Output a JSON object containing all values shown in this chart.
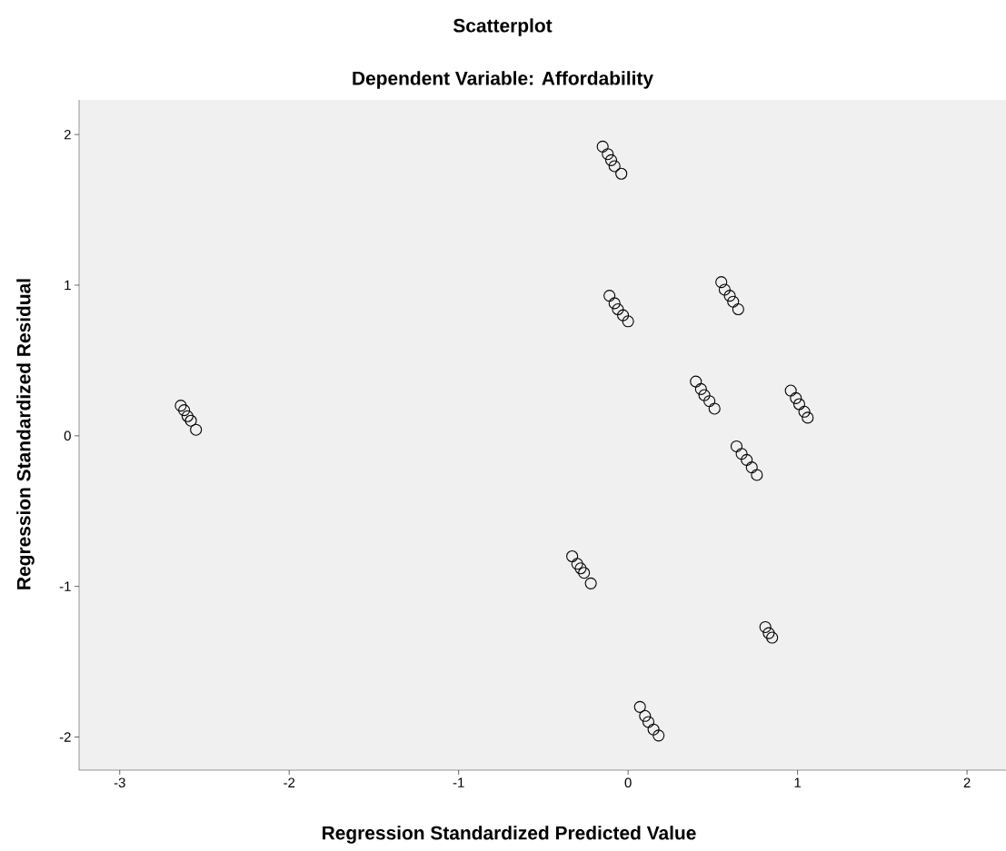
{
  "chart_data": {
    "type": "scatter",
    "title": "Scatterplot",
    "subtitle": "Dependent Variable: Affordability",
    "xlabel": "Regression Standardized Predicted Value",
    "ylabel": "Regression Standardized Residual",
    "x": [
      -2.64,
      -2.62,
      -2.6,
      -2.58,
      -2.55,
      -0.15,
      -0.12,
      -0.1,
      -0.08,
      -0.04,
      -0.11,
      -0.08,
      -0.06,
      -0.03,
      0.0,
      0.55,
      0.57,
      0.6,
      0.62,
      0.65,
      0.4,
      0.43,
      0.45,
      0.48,
      0.51,
      0.96,
      0.99,
      1.01,
      1.04,
      1.06,
      0.64,
      0.67,
      0.7,
      0.73,
      0.76,
      -0.33,
      -0.3,
      -0.28,
      -0.26,
      -0.22,
      0.81,
      0.83,
      0.85,
      0.07,
      0.1,
      0.12,
      0.15,
      0.18
    ],
    "values": [
      0.2,
      0.17,
      0.13,
      0.1,
      0.04,
      1.92,
      1.87,
      1.83,
      1.79,
      1.74,
      0.93,
      0.88,
      0.84,
      0.8,
      0.76,
      1.02,
      0.97,
      0.93,
      0.89,
      0.84,
      0.36,
      0.31,
      0.27,
      0.23,
      0.18,
      0.3,
      0.25,
      0.21,
      0.16,
      0.12,
      -0.07,
      -0.12,
      -0.16,
      -0.21,
      -0.26,
      -0.8,
      -0.85,
      -0.88,
      -0.91,
      -0.98,
      -1.27,
      -1.31,
      -1.34,
      -1.8,
      -1.86,
      -1.9,
      -1.95,
      -1.99
    ],
    "color": "#000000",
    "marker": "circle",
    "xlim": [
      -3.24,
      2.23
    ],
    "ylim": [
      -2.22,
      2.23
    ],
    "xticks": [
      -3,
      -2,
      -1,
      0,
      1,
      2
    ],
    "yticks": [
      -2,
      -1,
      0,
      1,
      2
    ]
  }
}
